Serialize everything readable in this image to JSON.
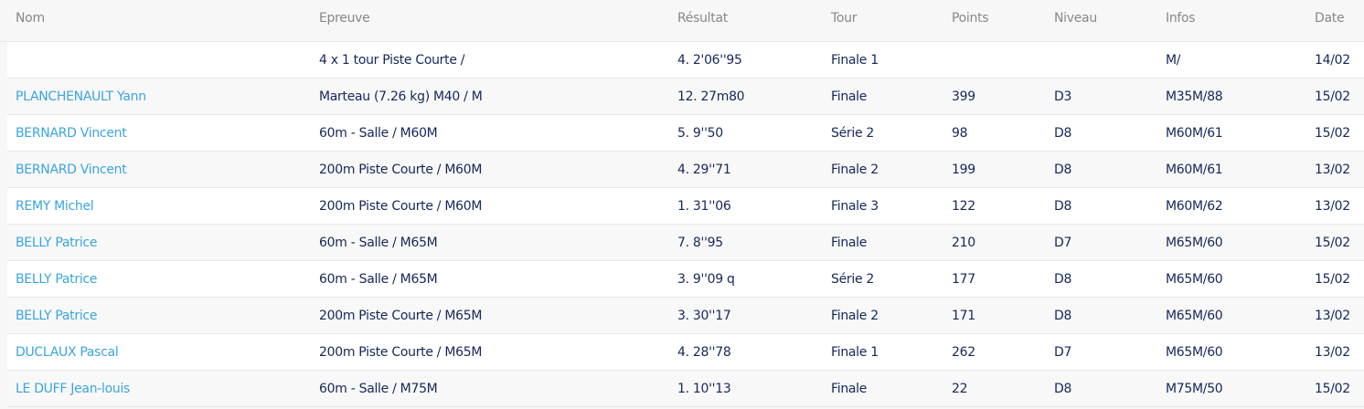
{
  "colors": {
    "link": "#3aa4df",
    "text": "#16265a",
    "header": "#888888"
  },
  "headers": [
    "Nom",
    "Epreuve",
    "Résultat",
    "Tour",
    "Points",
    "Niveau",
    "Infos",
    "Date"
  ],
  "rows": [
    {
      "nom": "",
      "epreuve": "4 x 1 tour Piste Courte /",
      "resultat": "4. 2'06''95",
      "tour": "Finale 1",
      "points": "",
      "niveau": "",
      "infos": "M/",
      "date": "14/02"
    },
    {
      "nom": "PLANCHENAULT Yann",
      "epreuve": "Marteau (7.26 kg) M40 / M",
      "resultat": "12. 27m80",
      "tour": "Finale",
      "points": "399",
      "niveau": "D3",
      "infos": "M35M/88",
      "date": "15/02"
    },
    {
      "nom": "BERNARD Vincent",
      "epreuve": "60m - Salle / M60M",
      "resultat": "5. 9''50",
      "tour": "Série 2",
      "points": "98",
      "niveau": "D8",
      "infos": "M60M/61",
      "date": "15/02"
    },
    {
      "nom": "BERNARD Vincent",
      "epreuve": "200m Piste Courte / M60M",
      "resultat": "4. 29''71",
      "tour": "Finale 2",
      "points": "199",
      "niveau": "D8",
      "infos": "M60M/61",
      "date": "13/02"
    },
    {
      "nom": "REMY Michel",
      "epreuve": "200m Piste Courte / M60M",
      "resultat": "1. 31''06",
      "tour": "Finale 3",
      "points": "122",
      "niveau": "D8",
      "infos": "M60M/62",
      "date": "13/02"
    },
    {
      "nom": "BELLY Patrice",
      "epreuve": "60m - Salle / M65M",
      "resultat": "7. 8''95",
      "tour": "Finale",
      "points": "210",
      "niveau": "D7",
      "infos": "M65M/60",
      "date": "15/02"
    },
    {
      "nom": "BELLY Patrice",
      "epreuve": "60m - Salle / M65M",
      "resultat": "3. 9''09 q",
      "tour": "Série 2",
      "points": "177",
      "niveau": "D8",
      "infos": "M65M/60",
      "date": "15/02"
    },
    {
      "nom": "BELLY Patrice",
      "epreuve": "200m Piste Courte / M65M",
      "resultat": "3. 30''17",
      "tour": "Finale 2",
      "points": "171",
      "niveau": "D8",
      "infos": "M65M/60",
      "date": "13/02"
    },
    {
      "nom": "DUCLAUX Pascal",
      "epreuve": "200m Piste Courte / M65M",
      "resultat": "4. 28''78",
      "tour": "Finale 1",
      "points": "262",
      "niveau": "D7",
      "infos": "M65M/60",
      "date": "13/02"
    },
    {
      "nom": "LE DUFF Jean-louis",
      "epreuve": "60m - Salle / M75M",
      "resultat": "1. 10''13",
      "tour": "Finale",
      "points": "22",
      "niveau": "D8",
      "infos": "M75M/50",
      "date": "15/02"
    }
  ]
}
